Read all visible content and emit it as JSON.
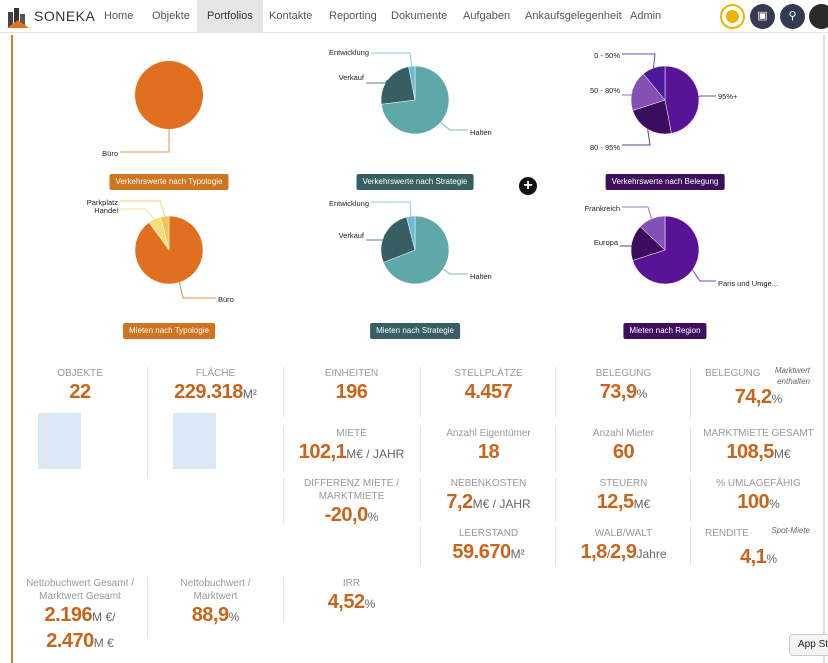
{
  "header": {
    "brand": "SONEKA",
    "nav": [
      {
        "label": "Home"
      },
      {
        "label": "Objekte"
      },
      {
        "label": "Portfolios",
        "active": true
      },
      {
        "label": "Kontakte"
      },
      {
        "label": "Reporting"
      },
      {
        "label": "Dokumente"
      },
      {
        "label": "Aufgaben"
      },
      {
        "label": "Ankaufsgelegenheit"
      },
      {
        "label": "Admin"
      }
    ],
    "icons": [
      "status-indicator-icon",
      "cube-icon",
      "search-icon",
      "user-avatar"
    ]
  },
  "chart_data": [
    {
      "type": "pie",
      "title": "Verkehrswerte nach Typologie",
      "badge_color": "#cf741f",
      "slices": [
        {
          "label": "Büro",
          "value": 100,
          "color": "#e07020"
        }
      ]
    },
    {
      "type": "pie",
      "title": "Verkehrswerte nach Strategie",
      "badge_color": "#375f63",
      "slices": [
        {
          "label": "Halten",
          "value": 73,
          "color": "#5fa8aa"
        },
        {
          "label": "Verkauf",
          "value": 24,
          "color": "#375f63"
        },
        {
          "label": "Entwicklung",
          "value": 3,
          "color": "#6bbad6"
        }
      ]
    },
    {
      "type": "pie",
      "title": "Verkehrswerte nach Belegung",
      "badge_color": "#3e0d5e",
      "slices": [
        {
          "label": "95%+",
          "value": 47,
          "color": "#5a1396"
        },
        {
          "label": "80 - 95%",
          "value": 23,
          "color": "#3b0d5e"
        },
        {
          "label": "50 - 80%",
          "value": 19,
          "color": "#8550b5"
        },
        {
          "label": "0 - 50%",
          "value": 11,
          "color": "#4a1a9a"
        }
      ]
    },
    {
      "type": "pie",
      "title": "Mieten nach Typologie",
      "badge_color": "#cf741f",
      "slices": [
        {
          "label": "Büro",
          "value": 90,
          "color": "#e07020"
        },
        {
          "label": "Handel",
          "value": 6,
          "color": "#f5dc7a"
        },
        {
          "label": "Parkplatz",
          "value": 4,
          "color": "#f0c850"
        }
      ]
    },
    {
      "type": "pie",
      "title": "Mieten nach Strategie",
      "badge_color": "#375f63",
      "slices": [
        {
          "label": "Halten",
          "value": 69,
          "color": "#5fa8aa"
        },
        {
          "label": "Verkauf",
          "value": 27,
          "color": "#375f63"
        },
        {
          "label": "Entwicklung",
          "value": 4,
          "color": "#6bbad6"
        }
      ]
    },
    {
      "type": "pie",
      "title": "Mieten nach Region",
      "badge_color": "#3e0d5e",
      "slices": [
        {
          "label": "Paris und Umge...",
          "value": 70,
          "color": "#5a1396"
        },
        {
          "label": "Europa",
          "value": 17,
          "color": "#3b0d5e"
        },
        {
          "label": "Frankreich",
          "value": 13,
          "color": "#8550b5"
        }
      ]
    }
  ],
  "kpis": [
    {
      "label": "OBJEKTE",
      "value": "22"
    },
    {
      "label": "FLÄCHE",
      "value": "229.318",
      "unit": "M²"
    },
    {
      "label": "EINHEITEN",
      "value": "196"
    },
    {
      "label": "STELLPLÄTZE",
      "value": "4.457"
    },
    {
      "label": "BELEGUNG",
      "value": "73,9",
      "unit": "%"
    },
    {
      "label": "BELEGUNG",
      "value": "74,2",
      "unit": "%",
      "note": "Marktwert enthalten"
    },
    {
      "label": "MIETE",
      "value": "102,1",
      "unit": "M€ / JAHR"
    },
    {
      "label": "Anzahl Eigentümer",
      "value": "18"
    },
    {
      "label": "Anzahl Mieter",
      "value": "60"
    },
    {
      "label": "MARKTMIETE GESAMT",
      "value": "108,5",
      "unit": "M€"
    },
    {
      "label": "DIFFERENZ MIETE / MARKTMIETE",
      "value": "-20,0",
      "unit": "%"
    },
    {
      "label": "NEBENKOSTEN",
      "value": "7,2",
      "unit": "M€ / JAHR"
    },
    {
      "label": "STEUERN",
      "value": "12,5",
      "unit": "M€"
    },
    {
      "label": "% UMLAGEFÄHIG",
      "value": "100",
      "unit": "%"
    },
    {
      "label": "LEERSTAND",
      "value": "59.670",
      "unit": "M²"
    },
    {
      "label": "WALB/WALT",
      "value": "1,8",
      "unit": "/",
      "value2": "2,9",
      "unit2": "Jahre"
    },
    {
      "label": "RENDITE",
      "value": "4,1",
      "unit": "%",
      "note": "Spot-Miete"
    },
    {
      "label": "Nettobuchwert Gesamt / Marktwert Gesamt",
      "value": "2.196",
      "unit": "M €/",
      "value2": "2.470",
      "unit2": "M €"
    },
    {
      "label": "Nettobuchwert / Marktwert",
      "value": "88,9",
      "unit": "%"
    },
    {
      "label": "IRR",
      "value": "4,52",
      "unit": "%"
    }
  ],
  "tooltip": "App St"
}
